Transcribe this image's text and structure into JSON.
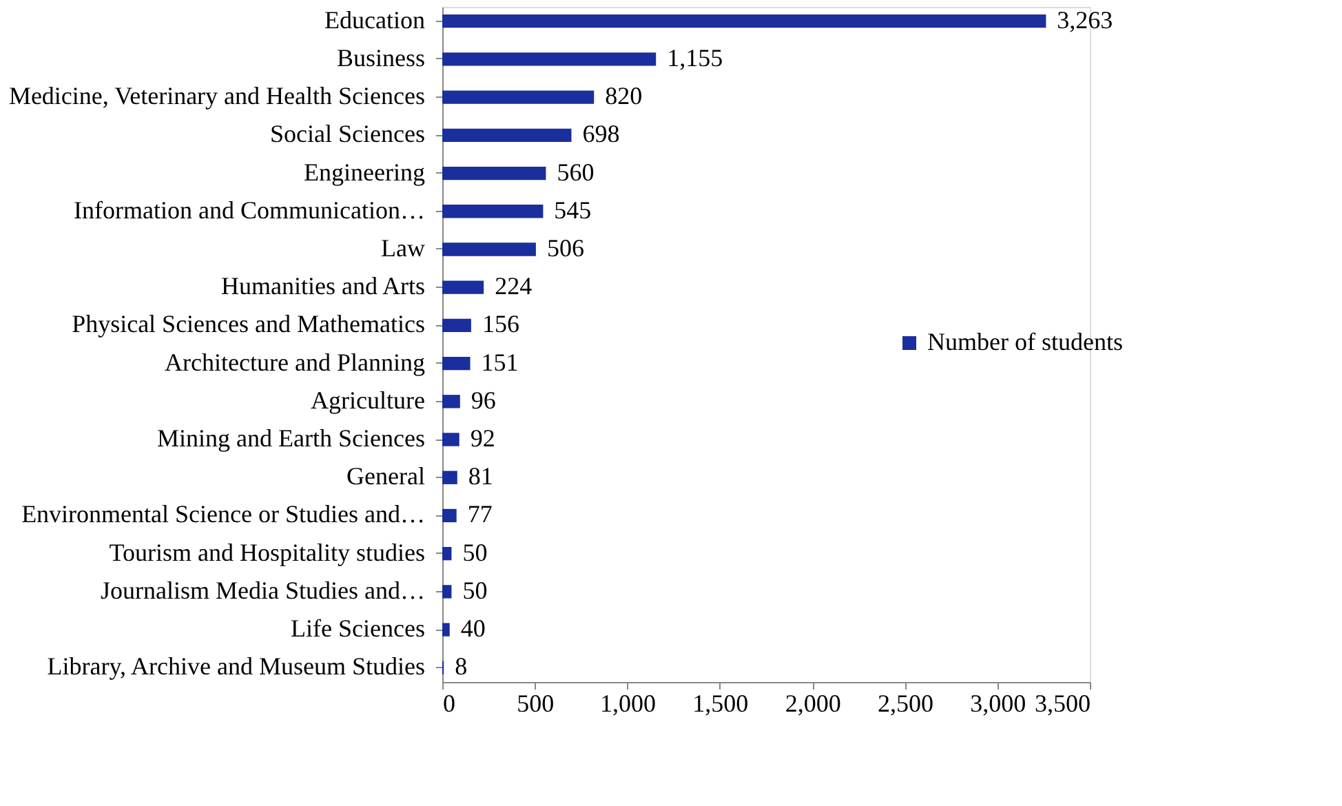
{
  "chart_data": {
    "type": "bar",
    "orientation": "horizontal",
    "categories": [
      "Education",
      "Business",
      "Medicine, Veterinary and Health Sciences",
      "Social Sciences",
      "Engineering",
      "Information and Communication…",
      "Law",
      "Humanities and Arts",
      "Physical Sciences and Mathematics",
      "Architecture and Planning",
      "Agriculture",
      "Mining and Earth Sciences",
      "General",
      "Environmental Science or Studies and…",
      "Tourism and Hospitality studies",
      "Journalism Media Studies and…",
      "Life Sciences",
      "Library, Archive and Museum Studies"
    ],
    "series": [
      {
        "name": "Number of students",
        "color": "#1a2e9e",
        "values": [
          3263,
          1155,
          820,
          698,
          560,
          545,
          506,
          224,
          156,
          151,
          96,
          92,
          81,
          77,
          50,
          50,
          40,
          8
        ],
        "value_labels": [
          "3,263",
          "1,155",
          "820",
          "698",
          "560",
          "545",
          "506",
          "224",
          "156",
          "151",
          "96",
          "92",
          "81",
          "77",
          "50",
          "50",
          "40",
          "8"
        ]
      }
    ],
    "xlim": [
      0,
      3500
    ],
    "xticks": [
      0,
      500,
      {
        "value": 1000,
        "label": "1,000"
      },
      {
        "value": 1500,
        "label": "1,500"
      },
      {
        "value": 2000,
        "label": "2,000"
      },
      {
        "value": 2500,
        "label": "2,500"
      },
      {
        "value": 3000,
        "label": "3,000"
      },
      {
        "value": 3500,
        "label": "3,500"
      }
    ],
    "grid": false,
    "legend": "right"
  }
}
